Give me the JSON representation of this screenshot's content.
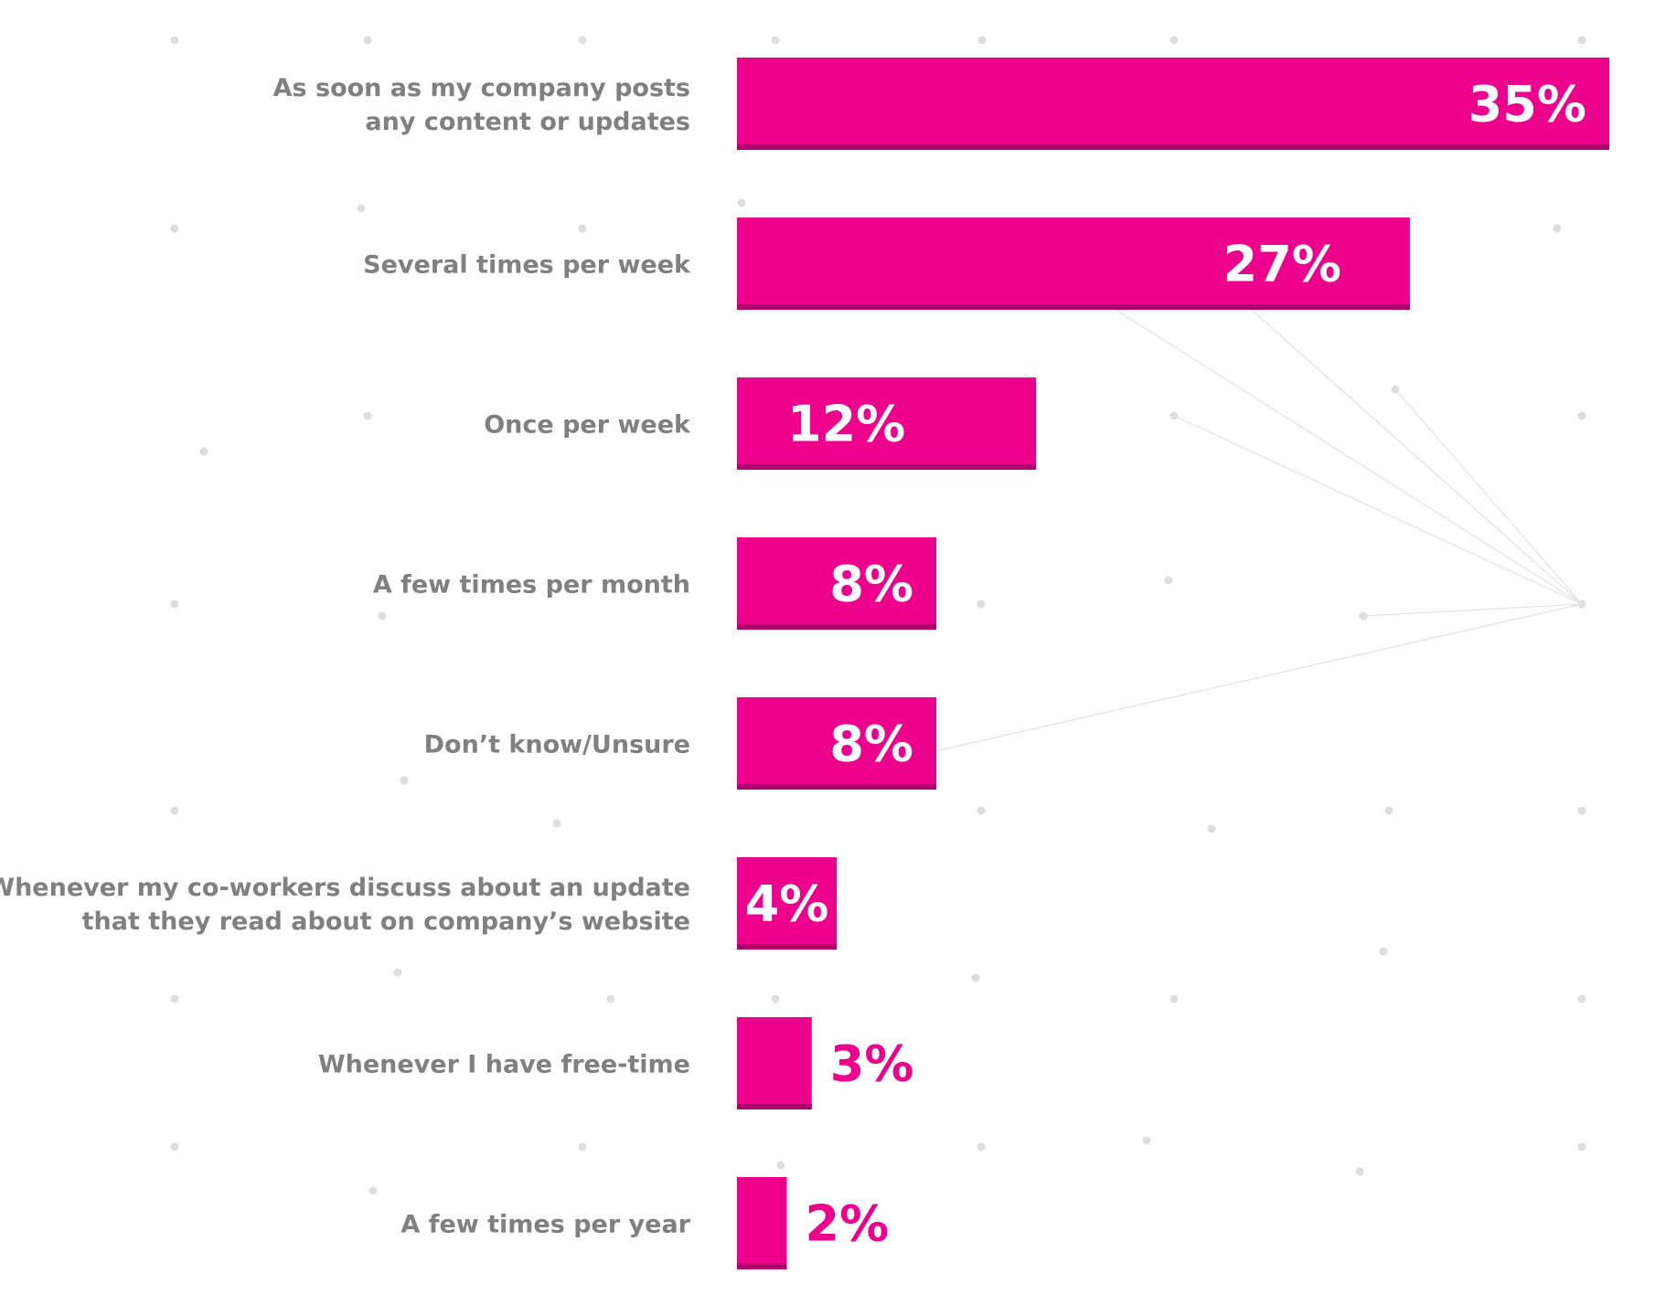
{
  "colors": {
    "bar": "#ec008c",
    "bar_shadow": "#b0006b",
    "label_text": "#808080",
    "value_inside": "#ffffff",
    "value_outside": "#ec008c",
    "background_dots": "#dedede"
  },
  "chart_data": {
    "type": "bar",
    "orientation": "horizontal",
    "title": "",
    "xlabel": "",
    "ylabel": "",
    "xlim": [
      0,
      35
    ],
    "grid": false,
    "legend": "none",
    "value_suffix": "%",
    "categories": [
      [
        "As soon as my company posts",
        "any content or updates"
      ],
      [
        "Several times per week"
      ],
      [
        "Once per week"
      ],
      [
        "A few times per month"
      ],
      [
        "Don’t know/Unsure"
      ],
      [
        "Whenever my co-workers discuss about an update",
        "that they read about on company’s website"
      ],
      [
        "Whenever I have free-time"
      ],
      [
        "A few times per year"
      ]
    ],
    "values": [
      35,
      27,
      12,
      8,
      8,
      4,
      3,
      2
    ],
    "value_labels": [
      "35%",
      "27%",
      "12%",
      "8%",
      "8%",
      "4%",
      "3%",
      "2%"
    ]
  }
}
